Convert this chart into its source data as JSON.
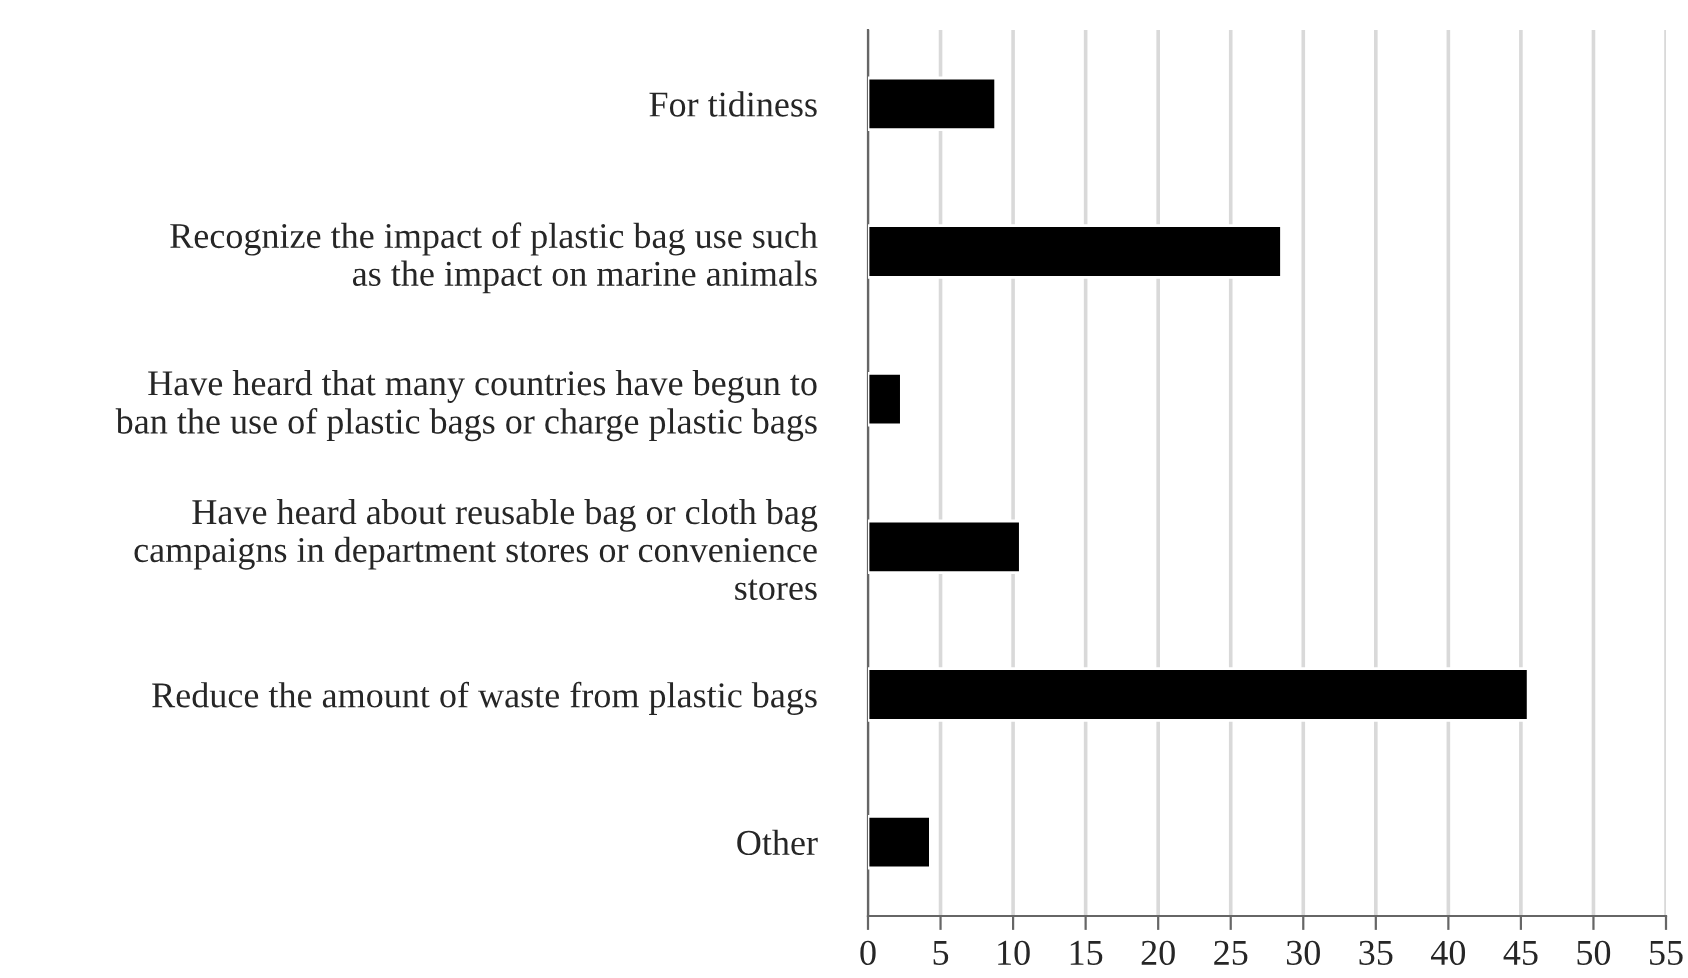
{
  "chart_data": {
    "type": "bar",
    "orientation": "horizontal",
    "categories": [
      "For tidiness",
      "Recognize the impact of plastic bag use such\nas the impact on marine animals",
      "Have heard that many countries have begun to\nban the use of plastic bags or charge plastic bags",
      "Have heard about reusable bag or cloth bag\ncampaigns in department stores or convenience\nstores",
      "Reduce the amount of waste from plastic bags",
      "Other"
    ],
    "values": [
      8.8,
      28.5,
      2.3,
      10.5,
      45.5,
      4.3
    ],
    "color": "#000000",
    "xlim": [
      0,
      55
    ],
    "xticks": [
      0,
      5,
      10,
      15,
      20,
      25,
      30,
      35,
      40,
      45,
      50,
      55
    ],
    "grid": "x"
  }
}
